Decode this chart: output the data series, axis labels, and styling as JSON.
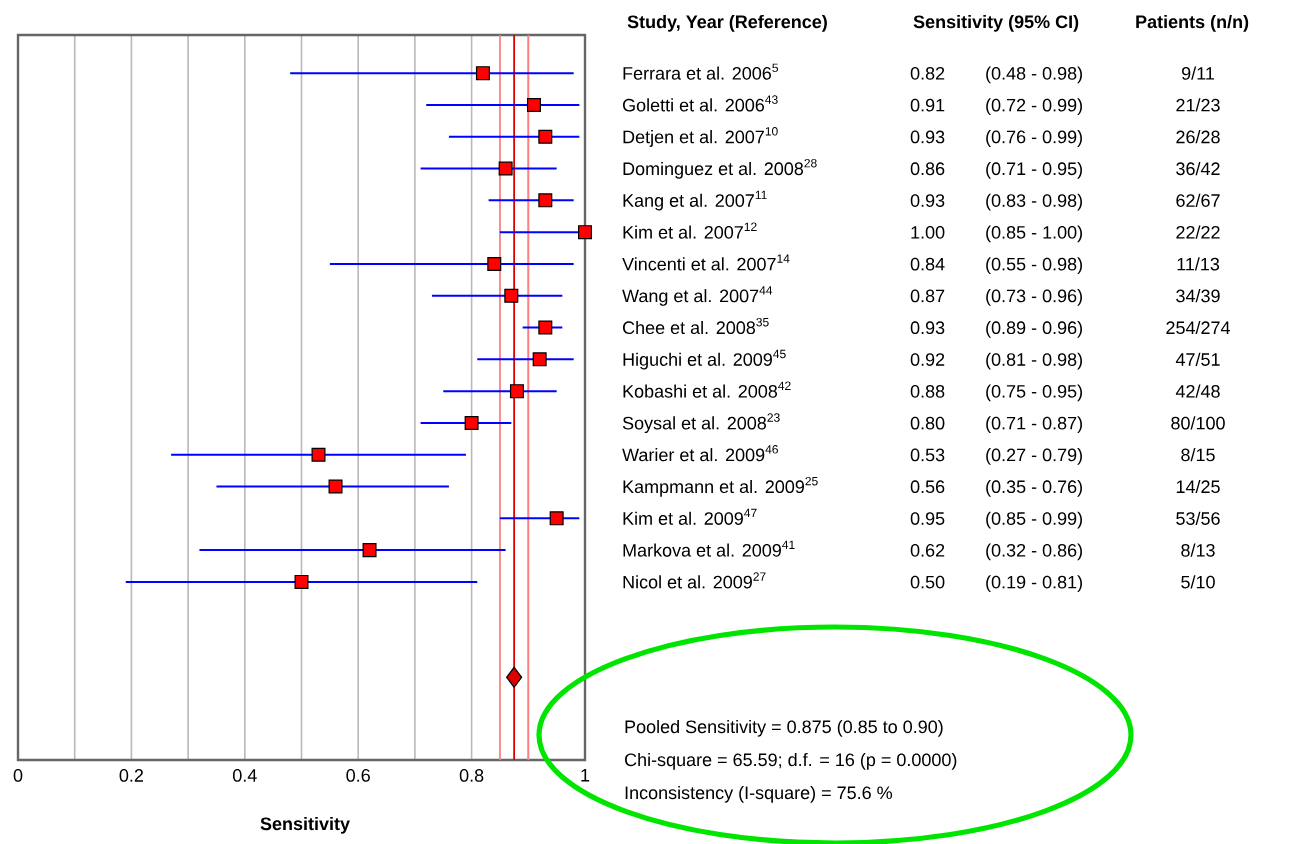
{
  "chart_data": {
    "type": "scatter",
    "orientation": "horizontal",
    "xlabel": "Sensitivity",
    "ylabel": "Study, Year (Reference)",
    "categories": [
      "Ferrara et al. 2006$^{5}$",
      "Goletti et al. 2006$^{43}$",
      "Detjen et al. 2007$^{10}$",
      "Dominguez et al. 2008$^{28}$",
      "Kang et al. 2007$^{11}$",
      "Kim et al. 2007$^{12}$",
      "Vincenti et al. 2007$^{14}$",
      "Wang et al. 2007$^{44}$",
      "Chee et al. 2008$^{35}$",
      "Higuchi et al. 2009$^{45}$",
      "Kobashi et al. 2008$^{42}$",
      "Soysal et al. 2008$^{23}$",
      "Warier et al. 2009$^{46}$",
      "Kampmann et al. 2009$^{25}$",
      "Kim et al. 2009$^{47}$",
      "Markova et al. 2009$^{41}$",
      "Nicol et al. 2009$^{27}$",
      null,
      null,
      null,
      null
    ],
    "series": [
      {
        "marker": "square",
        "color": "#ff0000",
        "values": [
          0.82,
          0.91,
          0.93,
          0.86,
          0.93,
          1.0,
          0.84,
          0.87,
          0.93,
          0.92,
          0.88,
          0.8,
          0.53,
          0.56,
          0.95,
          0.62,
          0.5,
          null,
          null,
          null,
          null
        ],
        "errors": [
          [
            0.48,
            0.98
          ],
          [
            0.72,
            0.99
          ],
          [
            0.76,
            0.99
          ],
          [
            0.71,
            0.95
          ],
          [
            0.83,
            0.98
          ],
          [
            0.85,
            1.0
          ],
          [
            0.55,
            0.98
          ],
          [
            0.73,
            0.96
          ],
          [
            0.89,
            0.96
          ],
          [
            0.81,
            0.98
          ],
          [
            0.75,
            0.95
          ],
          [
            0.71,
            0.87
          ],
          [
            0.27,
            0.79
          ],
          [
            0.35,
            0.76
          ],
          [
            0.85,
            0.99
          ],
          [
            0.32,
            0.86
          ],
          [
            0.19,
            0.81
          ],
          null,
          null,
          null,
          null
        ],
        "value_labels": [
          "0.82",
          "0.91",
          "0.93",
          "0.86",
          "0.93",
          "1.00",
          "0.84",
          "0.87",
          "0.93",
          "0.92",
          "0.88",
          "0.80",
          "0.53",
          "0.56",
          "0.95",
          "0.62",
          "0.50",
          null,
          null,
          null,
          null
        ]
      },
      {
        "marker": "diamond",
        "color": "#dd0000",
        "values": [
          null,
          null,
          null,
          null,
          null,
          null,
          null,
          null,
          null,
          null,
          null,
          null,
          null,
          null,
          null,
          null,
          null,
          null,
          null,
          0.875,
          null
        ]
      }
    ],
    "xlim": [
      0,
      1
    ],
    "xticks": [
      0,
      {
        "value": 0.1,
        "label": null
      },
      0.2,
      {
        "value": 0.3,
        "label": null
      },
      0.4,
      {
        "value": 0.5,
        "label": null
      },
      0.6,
      {
        "value": 0.7,
        "label": null
      },
      0.8,
      {
        "value": 0.9,
        "label": null
      },
      1
    ],
    "grid": "x",
    "ref_lines": [
      {
        "axis": "x",
        "value": 0.875,
        "color": "#dd0000"
      },
      {
        "axis": "x",
        "value": 0.85,
        "color": "#ff8080"
      },
      {
        "axis": "x",
        "value": 0.9,
        "color": "#ff8080"
      }
    ],
    "annotations": [
      "Sensitivity (95% CI)",
      "Patients (n/n)",
      "(0.48 - 0.98)",
      "(0.72 - 0.99)",
      "(0.76 - 0.99)",
      "(0.71 - 0.95)",
      "(0.83 - 0.98)",
      "(0.85 - 1.00)",
      "(0.55 - 0.98)",
      "(0.73 - 0.96)",
      "(0.89 - 0.96)",
      "(0.81 - 0.98)",
      "(0.75 - 0.95)",
      "(0.71 - 0.87)",
      "(0.27 - 0.79)",
      "(0.35 - 0.76)",
      "(0.85 - 0.99)",
      "(0.32 - 0.86)",
      "(0.19 - 0.81)",
      "9/11",
      "21/23",
      "26/28",
      "36/42",
      "62/67",
      "22/22",
      "11/13",
      "34/39",
      "254/274",
      "47/51",
      "42/48",
      "80/100",
      "8/15",
      "14/25",
      "53/56",
      "8/13",
      "5/10",
      "Pooled Sensitivity = 0.875 (0.85 to 0.90)",
      "Chi-square = 65.59; d.f.  = 16 (p = 0.0000)",
      "Inconsistency (I-square) = 75.6 %"
    ]
  }
}
